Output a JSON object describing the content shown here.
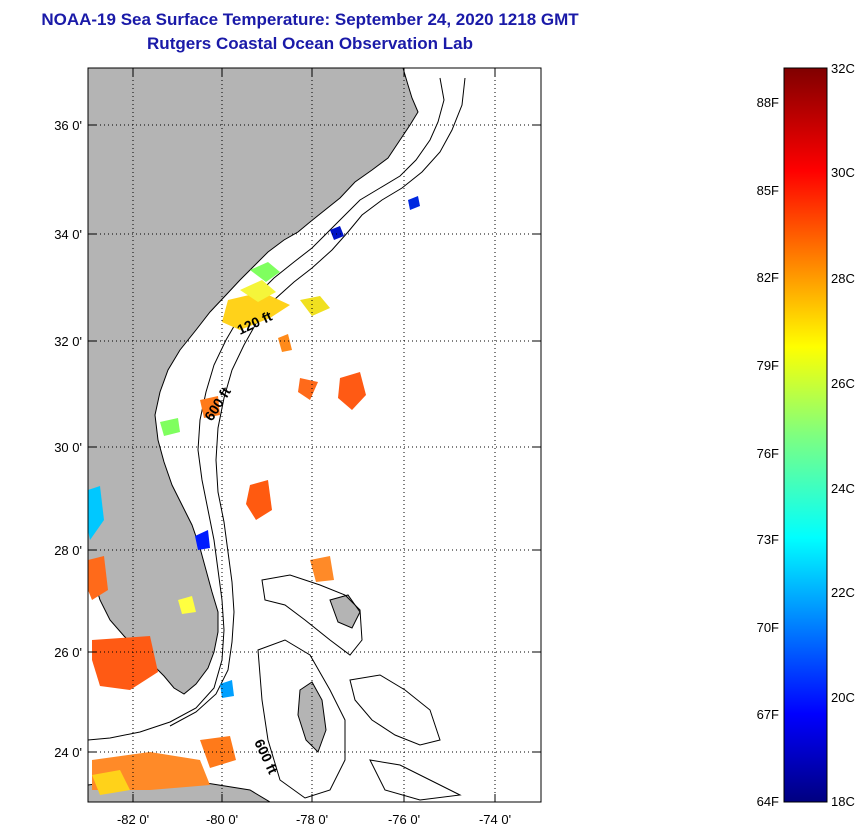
{
  "header": {
    "title": "NOAA-19 Sea Surface Temperature:  September 24, 2020 1218 GMT",
    "subtitle": "Rutgers Coastal Ocean Observation Lab"
  },
  "map": {
    "lat_labels": [
      "36 0'",
      "34 0'",
      "32 0'",
      "30 0'",
      "28 0'",
      "26 0'",
      "24 0'"
    ],
    "lon_labels": [
      "-82 0'",
      "-80 0'",
      "-78 0'",
      "-76 0'",
      "-74 0'"
    ],
    "contour_labels": [
      "120 ft",
      "600 ft",
      "600 ft"
    ],
    "land_color": "#b4b4b4"
  },
  "colorbar": {
    "fahrenheit": [
      "88F",
      "85F",
      "82F",
      "79F",
      "76F",
      "73F",
      "70F",
      "67F",
      "64F"
    ],
    "celsius": [
      "32C",
      "30C",
      "28C",
      "26C",
      "24C",
      "22C",
      "20C",
      "18C"
    ],
    "min_c": 18,
    "max_c": 32
  }
}
